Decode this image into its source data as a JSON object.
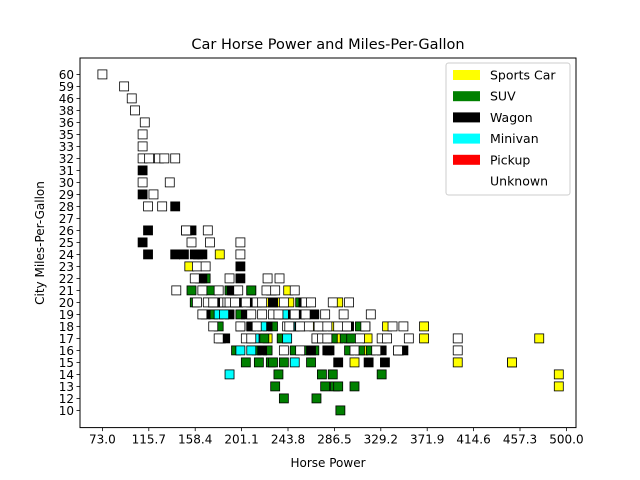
{
  "chart_data": {
    "type": "scatter",
    "title": "Car Horse Power and Miles-Per-Gallon",
    "xlabel": "Horse Power",
    "ylabel": "City Miles-Per-Gallon",
    "x_tick_labels": [
      "73.0",
      "115.7",
      "158.4",
      "201.1",
      "243.8",
      "286.5",
      "329.2",
      "371.9",
      "414.6",
      "457.3",
      "500.0"
    ],
    "y_tick_labels": [
      "10",
      "12",
      "13",
      "14",
      "15",
      "16",
      "17",
      "18",
      "19",
      "20",
      "21",
      "22",
      "23",
      "24",
      "25",
      "26",
      "27",
      "28",
      "29",
      "30",
      "31",
      "32",
      "33",
      "35",
      "36",
      "38",
      "46",
      "59",
      "60"
    ],
    "y_axis_note": "categorical: each distinct city MPG value occupies one evenly spaced row",
    "grid": false,
    "legend_position": "top-right",
    "categories": [
      "Sports Car",
      "SUV",
      "Wagon",
      "Minivan",
      "Pickup",
      "Unknown"
    ],
    "colors": {
      "Sports Car": "#ffff00",
      "SUV": "#008000",
      "Wagon": "#000000",
      "Minivan": "#00ffff",
      "Pickup": "#ff0000",
      "Unknown": "#ffffff"
    },
    "series": [
      {
        "name": "Sports Car",
        "points": [
          [
            151,
            26
          ],
          [
            153,
            23
          ],
          [
            181,
            24
          ],
          [
            193,
            21
          ],
          [
            196,
            20
          ],
          [
            198,
            20
          ],
          [
            210,
            21
          ],
          [
            220,
            20
          ],
          [
            225,
            17
          ],
          [
            228,
            20
          ],
          [
            229,
            21
          ],
          [
            236,
            20
          ],
          [
            239,
            19
          ],
          [
            244,
            21
          ],
          [
            245,
            20
          ],
          [
            268,
            18
          ],
          [
            270,
            17
          ],
          [
            285,
            18
          ],
          [
            290,
            20
          ],
          [
            290,
            17
          ],
          [
            294,
            18
          ],
          [
            297,
            18
          ],
          [
            300,
            17
          ],
          [
            305,
            15
          ],
          [
            313,
            16
          ],
          [
            315,
            18
          ],
          [
            317,
            17
          ],
          [
            335,
            18
          ],
          [
            346,
            16
          ],
          [
            369,
            17
          ],
          [
            369,
            18
          ],
          [
            400,
            15
          ],
          [
            450,
            15
          ],
          [
            475,
            17
          ],
          [
            493,
            13
          ],
          [
            493,
            14
          ],
          [
            450,
            15
          ]
        ]
      },
      {
        "name": "SUV",
        "points": [
          [
            155,
            21
          ],
          [
            158,
            20
          ],
          [
            163,
            22
          ],
          [
            168,
            22
          ],
          [
            173,
            21
          ],
          [
            175,
            19
          ],
          [
            178,
            20
          ],
          [
            180,
            18
          ],
          [
            182,
            17
          ],
          [
            183,
            20
          ],
          [
            190,
            21
          ],
          [
            195,
            21
          ],
          [
            196,
            16
          ],
          [
            200,
            18
          ],
          [
            200,
            19
          ],
          [
            205,
            15
          ],
          [
            210,
            18
          ],
          [
            210,
            21
          ],
          [
            212,
            20
          ],
          [
            215,
            16
          ],
          [
            217,
            15
          ],
          [
            222,
            17
          ],
          [
            225,
            16
          ],
          [
            228,
            15
          ],
          [
            230,
            15
          ],
          [
            230,
            20
          ],
          [
            230,
            18
          ],
          [
            232,
            13
          ],
          [
            235,
            14
          ],
          [
            238,
            17
          ],
          [
            240,
            15
          ],
          [
            240,
            12
          ],
          [
            243,
            17
          ],
          [
            250,
            16
          ],
          [
            250,
            18
          ],
          [
            250,
            19
          ],
          [
            255,
            18
          ],
          [
            255,
            20
          ],
          [
            260,
            16
          ],
          [
            265,
            15
          ],
          [
            268,
            16
          ],
          [
            270,
            12
          ],
          [
            275,
            14
          ],
          [
            278,
            13
          ],
          [
            280,
            17
          ],
          [
            285,
            17
          ],
          [
            285,
            14
          ],
          [
            287,
            13
          ],
          [
            290,
            13
          ],
          [
            292,
            10
          ],
          [
            296,
            17
          ],
          [
            300,
            16
          ],
          [
            302,
            17
          ],
          [
            305,
            13
          ],
          [
            310,
            18
          ],
          [
            310,
            16
          ],
          [
            320,
            16
          ],
          [
            330,
            14
          ]
        ]
      },
      {
        "name": "Wagon",
        "points": [
          [
            110,
            29
          ],
          [
            110,
            31
          ],
          [
            110,
            25
          ],
          [
            115,
            26
          ],
          [
            115,
            24
          ],
          [
            140,
            28
          ],
          [
            140,
            24
          ],
          [
            148,
            24
          ],
          [
            150,
            26
          ],
          [
            155,
            26
          ],
          [
            158,
            24
          ],
          [
            161,
            24
          ],
          [
            165,
            24
          ],
          [
            165,
            22
          ],
          [
            168,
            19
          ],
          [
            175,
            20
          ],
          [
            183,
            20
          ],
          [
            186,
            17
          ],
          [
            190,
            19
          ],
          [
            192,
            21
          ],
          [
            198,
            20
          ],
          [
            200,
            23
          ],
          [
            200,
            22
          ],
          [
            205,
            19
          ],
          [
            210,
            18
          ],
          [
            210,
            20
          ],
          [
            220,
            16
          ],
          [
            225,
            18
          ],
          [
            228,
            21
          ],
          [
            230,
            20
          ],
          [
            245,
            19
          ],
          [
            250,
            18
          ],
          [
            255,
            19
          ],
          [
            258,
            20
          ],
          [
            265,
            16
          ],
          [
            268,
            19
          ],
          [
            275,
            18
          ],
          [
            280,
            16
          ],
          [
            282,
            16
          ],
          [
            290,
            15
          ],
          [
            300,
            18
          ],
          [
            318,
            15
          ],
          [
            330,
            16
          ],
          [
            333,
            15
          ],
          [
            345,
            16
          ],
          [
            350,
            16
          ]
        ]
      },
      {
        "name": "Minivan",
        "points": [
          [
            180,
            19
          ],
          [
            185,
            19
          ],
          [
            190,
            14
          ],
          [
            200,
            16
          ],
          [
            210,
            16
          ],
          [
            213,
            17
          ],
          [
            220,
            18
          ],
          [
            240,
            19
          ],
          [
            243,
            17
          ],
          [
            246,
            18
          ],
          [
            250,
            15
          ]
        ]
      },
      {
        "name": "Pickup",
        "points": []
      },
      {
        "name": "Unknown",
        "points": [
          [
            73,
            60
          ],
          [
            93,
            59
          ],
          [
            100,
            46
          ],
          [
            103,
            38
          ],
          [
            110,
            35
          ],
          [
            110,
            33
          ],
          [
            110,
            32
          ],
          [
            110,
            30
          ],
          [
            112,
            36
          ],
          [
            115,
            28
          ],
          [
            116,
            32
          ],
          [
            120,
            29
          ],
          [
            125,
            32
          ],
          [
            128,
            28
          ],
          [
            130,
            32
          ],
          [
            135,
            30
          ],
          [
            140,
            32
          ],
          [
            141,
            21
          ],
          [
            150,
            26
          ],
          [
            155,
            25
          ],
          [
            158,
            22
          ],
          [
            160,
            23
          ],
          [
            160,
            20
          ],
          [
            165,
            19
          ],
          [
            165,
            21
          ],
          [
            168,
            23
          ],
          [
            170,
            20
          ],
          [
            170,
            26
          ],
          [
            172,
            25
          ],
          [
            175,
            20
          ],
          [
            175,
            18
          ],
          [
            180,
            17
          ],
          [
            180,
            21
          ],
          [
            185,
            20
          ],
          [
            188,
            20
          ],
          [
            190,
            20
          ],
          [
            190,
            22
          ],
          [
            195,
            20
          ],
          [
            198,
            21
          ],
          [
            200,
            24
          ],
          [
            200,
            25
          ],
          [
            200,
            18
          ],
          [
            205,
            20
          ],
          [
            205,
            17
          ],
          [
            210,
            19
          ],
          [
            210,
            17
          ],
          [
            215,
            20
          ],
          [
            215,
            18
          ],
          [
            220,
            20
          ],
          [
            220,
            19
          ],
          [
            224,
            21
          ],
          [
            225,
            22
          ],
          [
            230,
            19
          ],
          [
            232,
            21
          ],
          [
            235,
            19
          ],
          [
            236,
            22
          ],
          [
            240,
            20
          ],
          [
            240,
            16
          ],
          [
            243,
            18
          ],
          [
            245,
            18
          ],
          [
            250,
            21
          ],
          [
            250,
            19
          ],
          [
            255,
            18
          ],
          [
            255,
            16
          ],
          [
            260,
            20
          ],
          [
            260,
            19
          ],
          [
            263,
            18
          ],
          [
            265,
            20
          ],
          [
            270,
            17
          ],
          [
            272,
            18
          ],
          [
            275,
            17
          ],
          [
            278,
            19
          ],
          [
            280,
            18
          ],
          [
            280,
            17
          ],
          [
            285,
            20
          ],
          [
            290,
            18
          ],
          [
            295,
            19
          ],
          [
            298,
            18
          ],
          [
            300,
            20
          ],
          [
            305,
            16
          ],
          [
            310,
            17
          ],
          [
            315,
            18
          ],
          [
            320,
            19
          ],
          [
            325,
            16
          ],
          [
            330,
            17
          ],
          [
            335,
            17
          ],
          [
            340,
            18
          ],
          [
            345,
            16
          ],
          [
            350,
            18
          ],
          [
            355,
            17
          ],
          [
            400,
            17
          ],
          [
            400,
            16
          ]
        ]
      }
    ]
  }
}
